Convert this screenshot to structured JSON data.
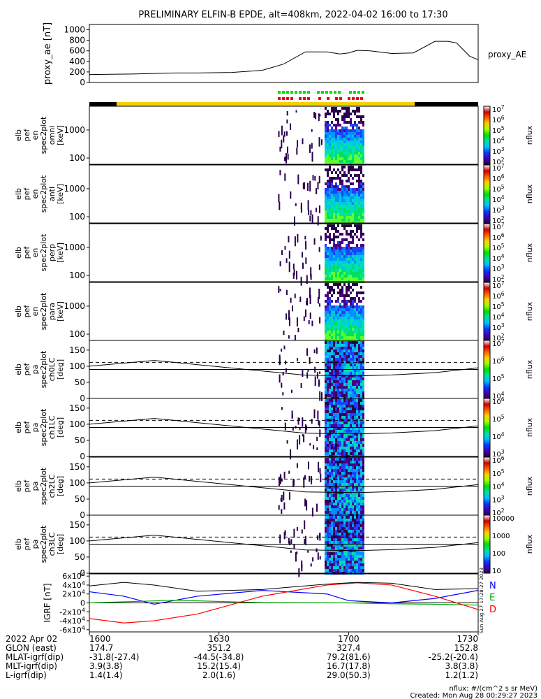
{
  "title": "PRELIMINARY ELFIN-B EPDE, alt=408km, 2022-04-02 16:00 to 17:30",
  "side_labels": {
    "ae": "proxy_AE",
    "nflux": "nflux",
    "igrf_components": [
      "N",
      "E",
      "D"
    ],
    "stamp": "Sun Aug 27 17:28:27 2023"
  },
  "colors": {
    "science_bar": "#f4d000",
    "black_bar": "#000000",
    "marker_green": "#00dd00",
    "marker_red": "#ee0000",
    "igrf_n": "#0000ff",
    "igrf_e": "#00aa00",
    "igrf_d": "#ff0000"
  },
  "footer": {
    "rows": [
      {
        "label": "2022 Apr 02",
        "values": [
          "1600",
          "1630",
          "1700",
          "1730"
        ]
      },
      {
        "label": "GLON (east)",
        "values": [
          "174.7",
          "351.2",
          "327.4",
          "152.8"
        ]
      },
      {
        "label": "MLAT-igrf(dip)",
        "values": [
          "-31.8(-27.4)",
          "-44.5(-34.8)",
          "79.2(81.6)",
          "-25.2(-20.4)"
        ]
      },
      {
        "label": "MLT-igrf(dip)",
        "values": [
          "3.9(3.8)",
          "15.2(15.4)",
          "16.7(17.8)",
          "3.8(3.8)"
        ]
      },
      {
        "label": "L-igrf(dip)",
        "values": [
          "1.4(1.4)",
          "2.0(1.6)",
          "29.0(50.3)",
          "1.2(1.2)"
        ]
      }
    ],
    "units_note": "nflux: #/(cm^2 s sr MeV)",
    "created": "Created: Mon Aug 28 00:29:27 2023"
  },
  "chart_data": [
    {
      "type": "line",
      "ylabel": "proxy_ae [nT]",
      "ylim": [
        0,
        1100
      ],
      "yticks": [
        0,
        200,
        400,
        600,
        800,
        1000
      ],
      "series": [
        {
          "name": "proxy_AE",
          "x": [
            0,
            10,
            20,
            25,
            33,
            40,
            45,
            50,
            55,
            58,
            60,
            62,
            65,
            70,
            75,
            80,
            83,
            85,
            88,
            90
          ],
          "y": [
            150,
            160,
            180,
            180,
            190,
            230,
            350,
            580,
            580,
            540,
            560,
            610,
            600,
            550,
            560,
            780,
            780,
            750,
            500,
            430
          ]
        }
      ]
    },
    {
      "type": "heatmap",
      "ylabel": "elb pef en spec2plot omni [keV]",
      "scale": "log",
      "yticks": [
        100,
        1000
      ],
      "yticklabels": [
        "100",
        "1000"
      ],
      "colorbar": {
        "label": "nflux",
        "ticks": [
          "10^2",
          "10^3",
          "10^4",
          "10^5",
          "10^6",
          "10^7"
        ]
      }
    },
    {
      "type": "heatmap",
      "ylabel": "elb pef en spec2plot anti [keV]",
      "scale": "log",
      "yticks": [
        100,
        1000
      ],
      "yticklabels": [
        "100",
        "1000"
      ],
      "colorbar": {
        "label": "nflux",
        "ticks": [
          "10^2",
          "10^3",
          "10^4",
          "10^5",
          "10^6",
          "10^7"
        ]
      }
    },
    {
      "type": "heatmap",
      "ylabel": "elb pef en spec2plot perp [keV]",
      "scale": "log",
      "yticks": [
        100,
        1000
      ],
      "yticklabels": [
        "100",
        "1000"
      ],
      "colorbar": {
        "label": "nflux",
        "ticks": [
          "10^2",
          "10^3",
          "10^4",
          "10^5",
          "10^6",
          "10^7"
        ]
      }
    },
    {
      "type": "heatmap",
      "ylabel": "elb pef en spec2plot para [keV]",
      "scale": "log",
      "yticks": [
        100,
        1000
      ],
      "yticklabels": [
        "100",
        "1000"
      ],
      "colorbar": {
        "label": "nflux",
        "ticks": [
          "10^2",
          "10^3",
          "10^4",
          "10^5",
          "10^6",
          "10^7"
        ]
      }
    },
    {
      "type": "heatmap",
      "ylabel": "elb pef pa spec2plot ch0LC [deg]",
      "ylim": [
        0,
        180
      ],
      "yticks": [
        0,
        50,
        100,
        150
      ],
      "colorbar": {
        "label": "nflux",
        "ticks": [
          "10^4",
          "10^5",
          "10^6",
          "10^7"
        ]
      }
    },
    {
      "type": "heatmap",
      "ylabel": "elb pef pa spec2plot ch1LC [deg]",
      "ylim": [
        0,
        180
      ],
      "yticks": [
        0,
        50,
        100,
        150
      ],
      "colorbar": {
        "label": "nflux",
        "ticks": [
          "10^3",
          "10^4",
          "10^5",
          "10^6"
        ]
      }
    },
    {
      "type": "heatmap",
      "ylabel": "elb pef pa spec2plot ch2LC [deg]",
      "ylim": [
        0,
        180
      ],
      "yticks": [
        0,
        50,
        100,
        150
      ],
      "colorbar": {
        "label": "nflux",
        "ticks": [
          "10^2",
          "10^3",
          "10^4",
          "10^5",
          "10^6"
        ]
      }
    },
    {
      "type": "heatmap",
      "ylabel": "elb pef pa spec2plot ch3LC [deg]",
      "ylim": [
        0,
        180
      ],
      "yticks": [
        0,
        50,
        100,
        150
      ],
      "colorbar": {
        "label": "nflux",
        "ticks": [
          "10",
          "100",
          "1000",
          "10000"
        ]
      }
    },
    {
      "type": "line",
      "ylabel": "IGRF [nT]",
      "ylim": [
        -65000,
        65000
      ],
      "yticks": [
        -60000,
        -40000,
        -20000,
        0,
        20000,
        40000,
        60000
      ],
      "series": [
        {
          "name": "N",
          "x": [
            0,
            8,
            15,
            25,
            40,
            55,
            60,
            70,
            80,
            90
          ],
          "y": [
            25000,
            15000,
            -3000,
            15000,
            28000,
            20000,
            5000,
            0,
            10000,
            28000
          ]
        },
        {
          "name": "E",
          "x": [
            0,
            10,
            20,
            40,
            55,
            60,
            70,
            80,
            90
          ],
          "y": [
            0,
            3000,
            6000,
            500,
            200,
            0,
            -2000,
            -3000,
            -5000
          ]
        },
        {
          "name": "D",
          "x": [
            0,
            8,
            15,
            25,
            40,
            55,
            62,
            70,
            80,
            90
          ],
          "y": [
            -35000,
            -45000,
            -40000,
            -25000,
            15000,
            40000,
            45000,
            40000,
            15000,
            -15000
          ]
        }
      ]
    }
  ]
}
